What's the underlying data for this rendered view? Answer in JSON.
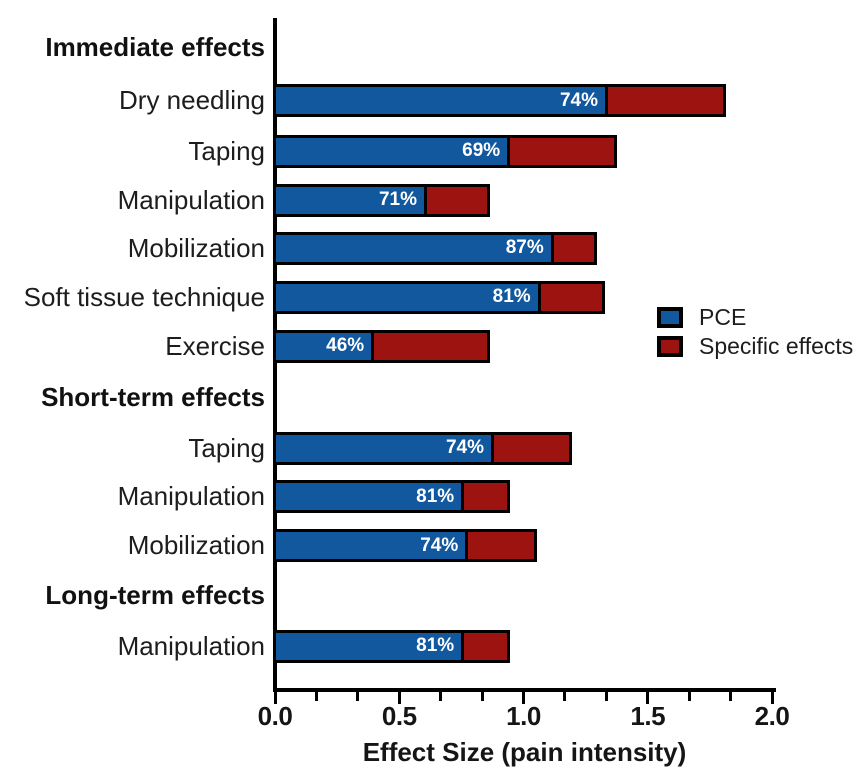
{
  "chart_data": {
    "type": "bar",
    "orientation": "horizontal",
    "stacked": true,
    "title": "",
    "xlabel": "Effect Size (pain intensity)",
    "ylabel": "",
    "xlim": [
      0,
      2.0
    ],
    "x_tick_labels": [
      "0.0",
      "0.5",
      "1.0",
      "1.5",
      "2.0"
    ],
    "minor_ticks_between_majors": 2,
    "grid": false,
    "legend_position": "right-middle",
    "legend": [
      {
        "label": "PCE",
        "color": "#11589f"
      },
      {
        "label": "Specific effects",
        "color": "#9c1310"
      }
    ],
    "colors": {
      "pce": "#11589f",
      "specific": "#9c1310",
      "border": "#000000",
      "pct_text": "#ffffff"
    },
    "rows": [
      {
        "type": "header",
        "label": "Immediate effects"
      },
      {
        "type": "bar",
        "label": "Dry needling",
        "total_effect_size": 1.8,
        "pce_pct": 74,
        "pct_label": "74%"
      },
      {
        "type": "bar",
        "label": "Taping",
        "total_effect_size": 1.36,
        "pce_pct": 69,
        "pct_label": "69%"
      },
      {
        "type": "bar",
        "label": "Manipulation",
        "total_effect_size": 0.85,
        "pce_pct": 71,
        "pct_label": "71%"
      },
      {
        "type": "bar",
        "label": "Mobilization",
        "total_effect_size": 1.28,
        "pce_pct": 87,
        "pct_label": "87%"
      },
      {
        "type": "bar",
        "label": "Soft tissue technique",
        "total_effect_size": 1.31,
        "pce_pct": 81,
        "pct_label": "81%"
      },
      {
        "type": "bar",
        "label": "Exercise",
        "total_effect_size": 0.85,
        "pce_pct": 46,
        "pct_label": "46%"
      },
      {
        "type": "header",
        "label": "Short-term effects"
      },
      {
        "type": "bar",
        "label": "Taping",
        "total_effect_size": 1.18,
        "pce_pct": 74,
        "pct_label": "74%"
      },
      {
        "type": "bar",
        "label": "Manipulation",
        "total_effect_size": 0.93,
        "pce_pct": 81,
        "pct_label": "81%"
      },
      {
        "type": "bar",
        "label": "Mobilization",
        "total_effect_size": 1.04,
        "pce_pct": 74,
        "pct_label": "74%"
      },
      {
        "type": "header",
        "label": "Long-term effects"
      },
      {
        "type": "bar",
        "label": "Manipulation",
        "total_effect_size": 0.93,
        "pce_pct": 81,
        "pct_label": "81%"
      }
    ]
  }
}
